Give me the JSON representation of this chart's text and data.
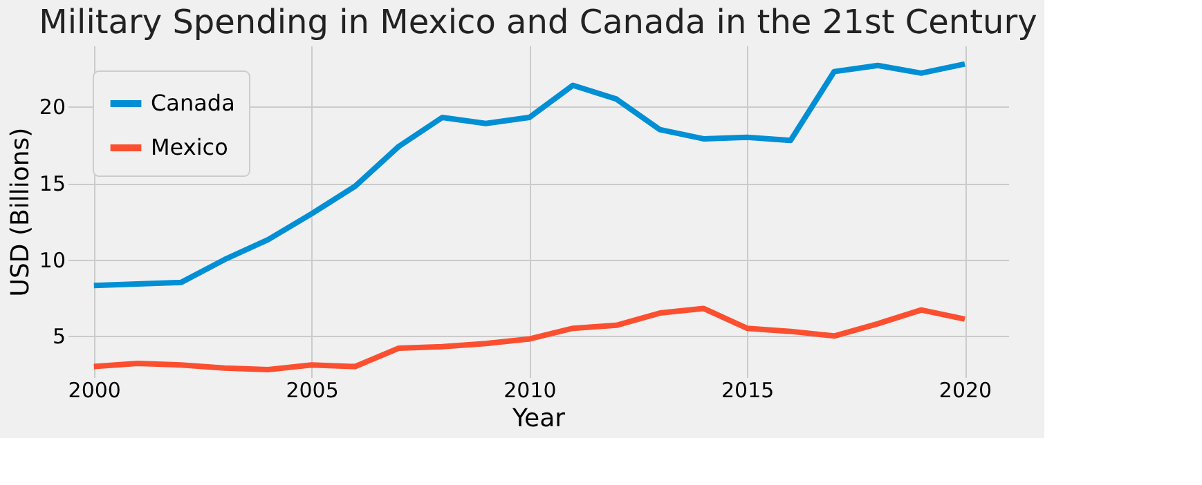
{
  "chart_data": {
    "type": "line",
    "title": "Military Spending in Mexico and Canada in the 21st Century",
    "xlabel": "Year",
    "ylabel": "USD (Billions)",
    "x": [
      2000,
      2001,
      2002,
      2003,
      2004,
      2005,
      2006,
      2007,
      2008,
      2009,
      2010,
      2011,
      2012,
      2013,
      2014,
      2015,
      2016,
      2017,
      2018,
      2019,
      2020
    ],
    "series": [
      {
        "name": "Canada",
        "color": "#008fd5",
        "values": [
          8.3,
          8.4,
          8.5,
          10.0,
          11.3,
          13.0,
          14.8,
          17.4,
          19.3,
          18.9,
          19.3,
          21.4,
          20.5,
          18.5,
          17.9,
          18.0,
          17.8,
          22.3,
          22.7,
          22.2,
          22.8
        ]
      },
      {
        "name": "Mexico",
        "color": "#fc4f30",
        "values": [
          3.0,
          3.2,
          3.1,
          2.9,
          2.8,
          3.1,
          3.0,
          4.2,
          4.3,
          4.5,
          4.8,
          5.5,
          5.7,
          6.5,
          6.8,
          5.5,
          5.3,
          5.0,
          5.8,
          6.7,
          6.1
        ]
      }
    ],
    "xlim": [
      1999.4,
      2021.0
    ],
    "ylim": [
      2.3,
      24.0
    ],
    "xticks": [
      2000,
      2005,
      2010,
      2015,
      2020
    ],
    "yticks": [
      5,
      10,
      15,
      20
    ],
    "grid": true,
    "legend": "top left"
  }
}
